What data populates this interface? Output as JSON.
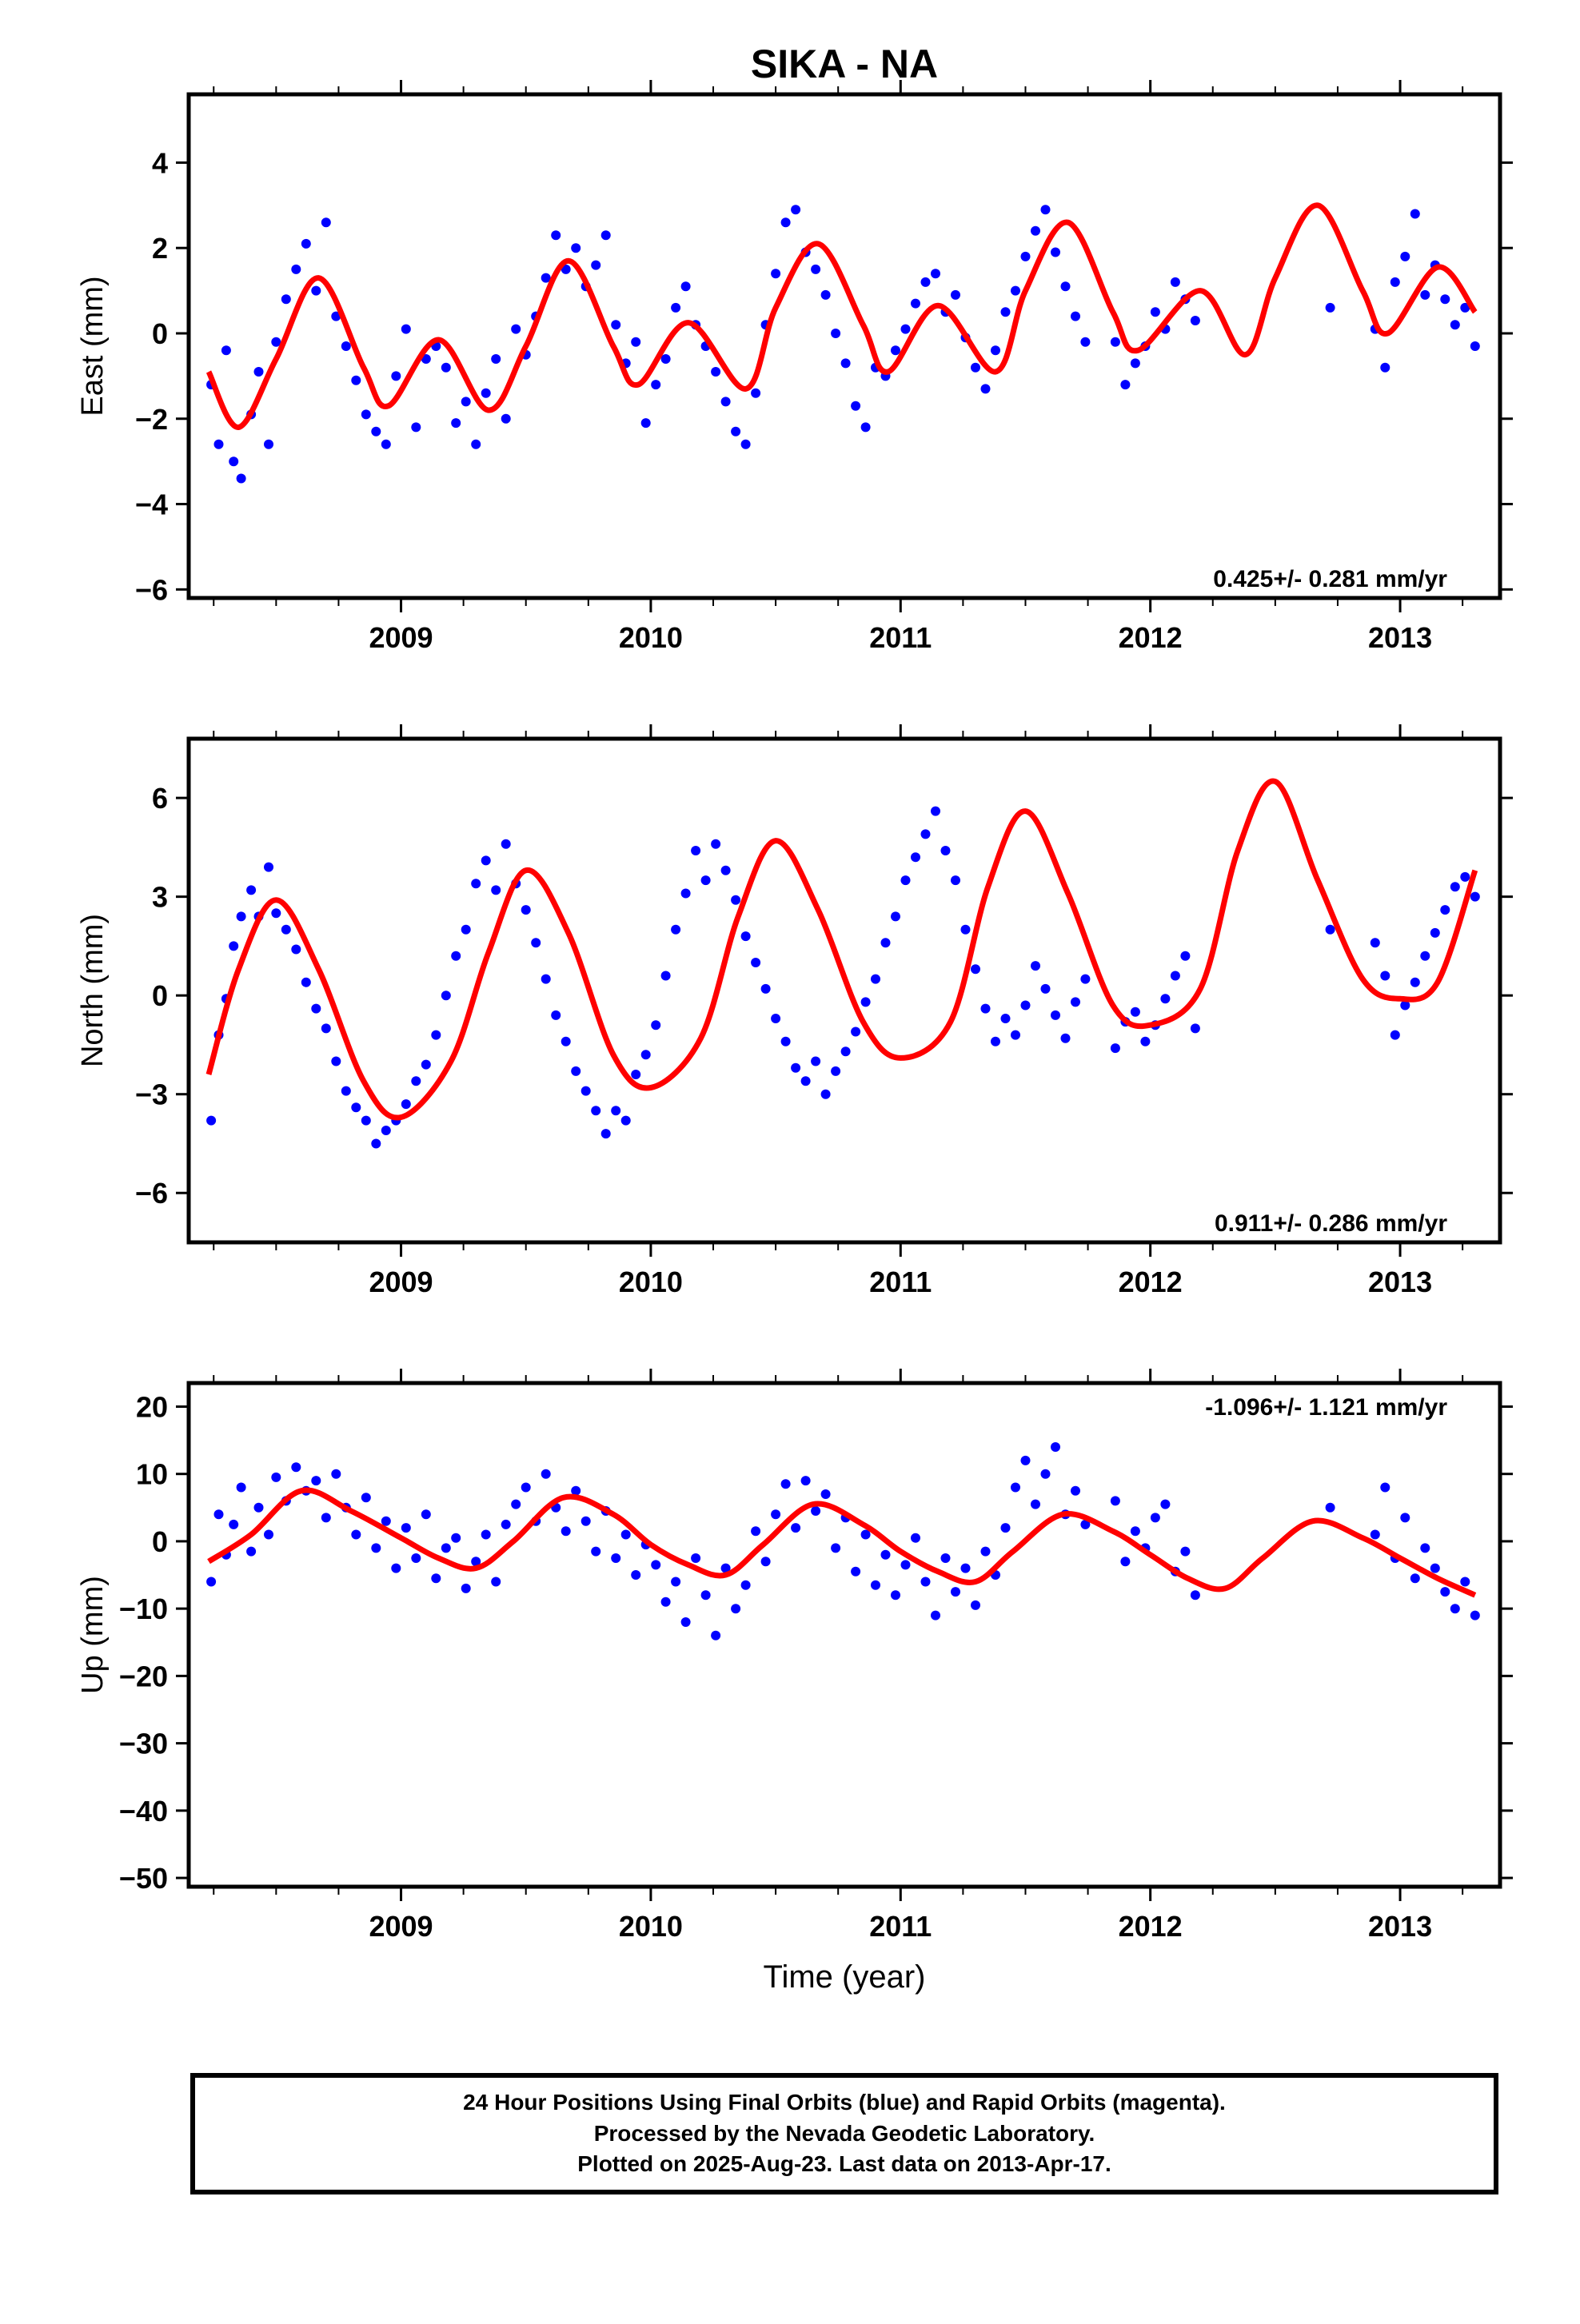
{
  "title": "SIKA - NA",
  "xlabel": "Time (year)",
  "footer": {
    "line1": "24 Hour Positions Using Final Orbits (blue) and Rapid Orbits (magenta).",
    "line2": "Processed by the Nevada Geodetic Laboratory.",
    "line3": "Plotted on 2025-Aug-23. Last data on 2013-Apr-17."
  },
  "colors": {
    "points": "#0000ff",
    "model": "#ff0000",
    "frame": "#000000"
  },
  "chart_data": [
    {
      "type": "scatter",
      "panel": "East",
      "ylabel": "East (mm)",
      "rate_label": "0.425+/- 0.281 mm/yr",
      "rate_position": "bottom-right",
      "xlim": [
        2008.15,
        2013.4
      ],
      "ylim": [
        -6.2,
        5.6
      ],
      "x_ticks": [
        "2009",
        "2010",
        "2011",
        "2012",
        "2013"
      ],
      "y_ticks": [
        -6,
        -4,
        -2,
        0,
        2,
        4
      ],
      "model": {
        "name": "",
        "x": [
          2008.23,
          2008.35,
          2008.5,
          2008.67,
          2008.85,
          2008.95,
          2009.15,
          2009.35,
          2009.5,
          2009.67,
          2009.85,
          2009.95,
          2010.15,
          2010.38,
          2010.5,
          2010.67,
          2010.85,
          2010.95,
          2011.15,
          2011.38,
          2011.5,
          2011.67,
          2011.85,
          2011.95,
          2012.2,
          2012.38,
          2012.5,
          2012.67,
          2012.85,
          2012.95,
          2013.15,
          2013.3
        ],
        "y": [
          -0.9,
          -2.2,
          -0.6,
          1.3,
          -0.8,
          -1.7,
          -0.15,
          -1.8,
          -0.3,
          1.7,
          -0.3,
          -1.2,
          0.25,
          -1.3,
          0.6,
          2.1,
          0.2,
          -0.9,
          0.65,
          -0.9,
          1.0,
          2.6,
          0.5,
          -0.4,
          1.0,
          -0.5,
          1.3,
          3.0,
          1.0,
          0.0,
          1.55,
          0.5
        ]
      },
      "points": {
        "x": [
          2008.24,
          2008.27,
          2008.3,
          2008.33,
          2008.36,
          2008.4,
          2008.43,
          2008.47,
          2008.5,
          2008.54,
          2008.58,
          2008.62,
          2008.66,
          2008.7,
          2008.74,
          2008.78,
          2008.82,
          2008.86,
          2008.9,
          2008.94,
          2008.98,
          2009.02,
          2009.06,
          2009.1,
          2009.14,
          2009.18,
          2009.22,
          2009.26,
          2009.3,
          2009.34,
          2009.38,
          2009.42,
          2009.46,
          2009.5,
          2009.54,
          2009.58,
          2009.62,
          2009.66,
          2009.7,
          2009.74,
          2009.78,
          2009.82,
          2009.86,
          2009.9,
          2009.94,
          2009.98,
          2010.02,
          2010.06,
          2010.1,
          2010.14,
          2010.18,
          2010.22,
          2010.26,
          2010.3,
          2010.34,
          2010.38,
          2010.42,
          2010.46,
          2010.5,
          2010.54,
          2010.58,
          2010.62,
          2010.66,
          2010.7,
          2010.74,
          2010.78,
          2010.82,
          2010.86,
          2010.9,
          2010.94,
          2010.98,
          2011.02,
          2011.06,
          2011.1,
          2011.14,
          2011.18,
          2011.22,
          2011.26,
          2011.3,
          2011.34,
          2011.38,
          2011.42,
          2011.46,
          2011.5,
          2011.54,
          2011.58,
          2011.62,
          2011.66,
          2011.7,
          2011.74,
          2011.86,
          2011.9,
          2011.94,
          2011.98,
          2012.02,
          2012.06,
          2012.1,
          2012.14,
          2012.18,
          2012.72,
          2012.9,
          2012.94,
          2012.98,
          2013.02,
          2013.06,
          2013.1,
          2013.14,
          2013.18,
          2013.22,
          2013.26,
          2013.3
        ],
        "y": [
          -1.2,
          -2.6,
          -0.4,
          -3.0,
          -3.4,
          -1.9,
          -0.9,
          -2.6,
          -0.2,
          0.8,
          1.5,
          2.1,
          1.0,
          2.6,
          0.4,
          -0.3,
          -1.1,
          -1.9,
          -2.3,
          -2.6,
          -1.0,
          0.1,
          -2.2,
          -0.6,
          -0.3,
          -0.8,
          -2.1,
          -1.6,
          -2.6,
          -1.4,
          -0.6,
          -2.0,
          0.1,
          -0.5,
          0.4,
          1.3,
          2.3,
          1.5,
          2.0,
          1.1,
          1.6,
          2.3,
          0.2,
          -0.7,
          -0.2,
          -2.1,
          -1.2,
          -0.6,
          0.6,
          1.1,
          0.2,
          -0.3,
          -0.9,
          -1.6,
          -2.3,
          -2.6,
          -1.4,
          0.2,
          1.4,
          2.6,
          2.9,
          1.9,
          1.5,
          0.9,
          0.0,
          -0.7,
          -1.7,
          -2.2,
          -0.8,
          -1.0,
          -0.4,
          0.1,
          0.7,
          1.2,
          1.4,
          0.5,
          0.9,
          -0.1,
          -0.8,
          -1.3,
          -0.4,
          0.5,
          1.0,
          1.8,
          2.4,
          2.9,
          1.9,
          1.1,
          0.4,
          -0.2,
          -0.2,
          -1.2,
          -0.7,
          -0.3,
          0.5,
          0.1,
          1.2,
          0.8,
          0.3,
          0.6,
          0.1,
          -0.8,
          1.2,
          1.8,
          2.8,
          0.9,
          1.6,
          0.8,
          0.2,
          0.6,
          -0.3
        ]
      }
    },
    {
      "type": "scatter",
      "panel": "North",
      "ylabel": "North (mm)",
      "rate_label": "0.911+/- 0.286 mm/yr",
      "rate_position": "bottom-right",
      "xlim": [
        2008.15,
        2013.4
      ],
      "ylim": [
        -7.5,
        7.8
      ],
      "x_ticks": [
        "2009",
        "2010",
        "2011",
        "2012",
        "2013"
      ],
      "y_ticks": [
        -6,
        -3,
        0,
        3,
        6
      ],
      "model": {
        "name": "",
        "x": [
          2008.23,
          2008.35,
          2008.5,
          2008.67,
          2008.85,
          2009.0,
          2009.2,
          2009.35,
          2009.5,
          2009.67,
          2009.85,
          2010.0,
          2010.2,
          2010.35,
          2010.5,
          2010.67,
          2010.85,
          2011.0,
          2011.2,
          2011.35,
          2011.5,
          2011.67,
          2011.85,
          2012.0,
          2012.2,
          2012.35,
          2012.5,
          2012.67,
          2012.85,
          2013.0,
          2013.15,
          2013.3
        ],
        "y": [
          -2.4,
          0.8,
          2.9,
          0.8,
          -2.6,
          -3.7,
          -2.0,
          1.3,
          3.8,
          1.9,
          -1.8,
          -2.8,
          -1.3,
          2.4,
          4.7,
          2.6,
          -0.8,
          -1.9,
          -0.8,
          3.3,
          5.6,
          3.1,
          -0.3,
          -0.9,
          0.2,
          4.4,
          6.5,
          3.5,
          0.5,
          -0.1,
          0.4,
          3.8
        ]
      },
      "points": {
        "x": [
          2008.24,
          2008.27,
          2008.3,
          2008.33,
          2008.36,
          2008.4,
          2008.43,
          2008.47,
          2008.5,
          2008.54,
          2008.58,
          2008.62,
          2008.66,
          2008.7,
          2008.74,
          2008.78,
          2008.82,
          2008.86,
          2008.9,
          2008.94,
          2008.98,
          2009.02,
          2009.06,
          2009.1,
          2009.14,
          2009.18,
          2009.22,
          2009.26,
          2009.3,
          2009.34,
          2009.38,
          2009.42,
          2009.46,
          2009.5,
          2009.54,
          2009.58,
          2009.62,
          2009.66,
          2009.7,
          2009.74,
          2009.78,
          2009.82,
          2009.86,
          2009.9,
          2009.94,
          2009.98,
          2010.02,
          2010.06,
          2010.1,
          2010.14,
          2010.18,
          2010.22,
          2010.26,
          2010.3,
          2010.34,
          2010.38,
          2010.42,
          2010.46,
          2010.5,
          2010.54,
          2010.58,
          2010.62,
          2010.66,
          2010.7,
          2010.74,
          2010.78,
          2010.82,
          2010.86,
          2010.9,
          2010.94,
          2010.98,
          2011.02,
          2011.06,
          2011.1,
          2011.14,
          2011.18,
          2011.22,
          2011.26,
          2011.3,
          2011.34,
          2011.38,
          2011.42,
          2011.46,
          2011.5,
          2011.54,
          2011.58,
          2011.62,
          2011.66,
          2011.7,
          2011.74,
          2011.86,
          2011.9,
          2011.94,
          2011.98,
          2012.02,
          2012.06,
          2012.1,
          2012.14,
          2012.18,
          2012.72,
          2012.9,
          2012.94,
          2012.98,
          2013.02,
          2013.06,
          2013.1,
          2013.14,
          2013.18,
          2013.22,
          2013.26,
          2013.3
        ],
        "y": [
          -3.8,
          -1.2,
          -0.1,
          1.5,
          2.4,
          3.2,
          2.4,
          3.9,
          2.5,
          2.0,
          1.4,
          0.4,
          -0.4,
          -1.0,
          -2.0,
          -2.9,
          -3.4,
          -3.8,
          -4.5,
          -4.1,
          -3.8,
          -3.3,
          -2.6,
          -2.1,
          -1.2,
          0.0,
          1.2,
          2.0,
          3.4,
          4.1,
          3.2,
          4.6,
          3.4,
          2.6,
          1.6,
          0.5,
          -0.6,
          -1.4,
          -2.3,
          -2.9,
          -3.5,
          -4.2,
          -3.5,
          -3.8,
          -2.4,
          -1.8,
          -0.9,
          0.6,
          2.0,
          3.1,
          4.4,
          3.5,
          4.6,
          3.8,
          2.9,
          1.8,
          1.0,
          0.2,
          -0.7,
          -1.4,
          -2.2,
          -2.6,
          -2.0,
          -3.0,
          -2.3,
          -1.7,
          -1.1,
          -0.2,
          0.5,
          1.6,
          2.4,
          3.5,
          4.2,
          4.9,
          5.6,
          4.4,
          3.5,
          2.0,
          0.8,
          -0.4,
          -1.4,
          -0.7,
          -1.2,
          -0.3,
          0.9,
          0.2,
          -0.6,
          -1.3,
          -0.2,
          0.5,
          -1.6,
          -0.8,
          -0.5,
          -1.4,
          -0.9,
          -0.1,
          0.6,
          1.2,
          -1.0,
          2.0,
          1.6,
          0.6,
          -1.2,
          -0.3,
          0.4,
          1.2,
          1.9,
          2.6,
          3.3,
          3.6,
          3.0
        ]
      }
    },
    {
      "type": "scatter",
      "panel": "Up",
      "ylabel": "Up (mm)",
      "rate_label": "-1.096+/- 1.121 mm/yr",
      "rate_position": "top-right",
      "xlim": [
        2008.15,
        2013.4
      ],
      "ylim": [
        -51.3,
        23.5
      ],
      "x_ticks": [
        "2009",
        "2010",
        "2011",
        "2012",
        "2013"
      ],
      "y_ticks": [
        -50,
        -40,
        -30,
        -20,
        -10,
        0,
        10,
        20
      ],
      "model": {
        "name": "",
        "x": [
          2008.23,
          2008.4,
          2008.6,
          2008.8,
          2009.0,
          2009.15,
          2009.3,
          2009.45,
          2009.65,
          2009.85,
          2010.0,
          2010.15,
          2010.3,
          2010.45,
          2010.65,
          2010.85,
          2011.0,
          2011.15,
          2011.3,
          2011.45,
          2011.65,
          2011.85,
          2012.0,
          2012.15,
          2012.3,
          2012.45,
          2012.65,
          2012.85,
          2013.0,
          2013.15,
          2013.3
        ],
        "y": [
          -3.0,
          1.0,
          7.5,
          4.5,
          0.5,
          -2.5,
          -4.0,
          0.0,
          6.5,
          4.0,
          -0.5,
          -3.5,
          -5.0,
          -0.5,
          5.5,
          2.5,
          -1.5,
          -4.5,
          -6.0,
          -1.5,
          4.0,
          1.5,
          -2.0,
          -5.5,
          -7.0,
          -2.5,
          3.0,
          0.5,
          -2.5,
          -5.5,
          -8.0
        ]
      },
      "points": {
        "x": [
          2008.24,
          2008.27,
          2008.3,
          2008.33,
          2008.36,
          2008.4,
          2008.43,
          2008.47,
          2008.5,
          2008.54,
          2008.58,
          2008.62,
          2008.66,
          2008.7,
          2008.74,
          2008.78,
          2008.82,
          2008.86,
          2008.9,
          2008.94,
          2008.98,
          2009.02,
          2009.06,
          2009.1,
          2009.14,
          2009.18,
          2009.22,
          2009.26,
          2009.3,
          2009.34,
          2009.38,
          2009.42,
          2009.46,
          2009.5,
          2009.54,
          2009.58,
          2009.62,
          2009.66,
          2009.7,
          2009.74,
          2009.78,
          2009.82,
          2009.86,
          2009.9,
          2009.94,
          2009.98,
          2010.02,
          2010.06,
          2010.1,
          2010.14,
          2010.18,
          2010.22,
          2010.26,
          2010.3,
          2010.34,
          2010.38,
          2010.42,
          2010.46,
          2010.5,
          2010.54,
          2010.58,
          2010.62,
          2010.66,
          2010.7,
          2010.74,
          2010.78,
          2010.82,
          2010.86,
          2010.9,
          2010.94,
          2010.98,
          2011.02,
          2011.06,
          2011.1,
          2011.14,
          2011.18,
          2011.22,
          2011.26,
          2011.3,
          2011.34,
          2011.38,
          2011.42,
          2011.46,
          2011.5,
          2011.54,
          2011.58,
          2011.62,
          2011.66,
          2011.7,
          2011.74,
          2011.86,
          2011.9,
          2011.94,
          2011.98,
          2012.02,
          2012.06,
          2012.1,
          2012.14,
          2012.18,
          2012.72,
          2012.9,
          2012.94,
          2012.98,
          2013.02,
          2013.06,
          2013.1,
          2013.14,
          2013.18,
          2013.22,
          2013.26,
          2013.3
        ],
        "y": [
          -6.0,
          4.0,
          -2.0,
          2.5,
          8.0,
          -1.5,
          5.0,
          1.0,
          9.5,
          6.0,
          11.0,
          7.5,
          9.0,
          3.5,
          10.0,
          5.0,
          1.0,
          6.5,
          -1.0,
          3.0,
          -4.0,
          2.0,
          -2.5,
          4.0,
          -5.5,
          -1.0,
          0.5,
          -7.0,
          -3.0,
          1.0,
          -6.0,
          2.5,
          5.5,
          8.0,
          3.0,
          10.0,
          5.0,
          1.5,
          7.5,
          3.0,
          -1.5,
          4.5,
          -2.5,
          1.0,
          -5.0,
          -0.5,
          -3.5,
          -9.0,
          -6.0,
          -12.0,
          -2.5,
          -8.0,
          -14.0,
          -4.0,
          -10.0,
          -6.5,
          1.5,
          -3.0,
          4.0,
          8.5,
          2.0,
          9.0,
          4.5,
          7.0,
          -1.0,
          3.5,
          -4.5,
          1.0,
          -6.5,
          -2.0,
          -8.0,
          -3.5,
          0.5,
          -6.0,
          -11.0,
          -2.5,
          -7.5,
          -4.0,
          -9.5,
          -1.5,
          -5.0,
          2.0,
          8.0,
          12.0,
          5.5,
          10.0,
          14.0,
          4.0,
          7.5,
          2.5,
          6.0,
          -3.0,
          1.5,
          -1.0,
          3.5,
          5.5,
          -4.5,
          -1.5,
          -8.0,
          5.0,
          1.0,
          8.0,
          -2.5,
          3.5,
          -5.5,
          -1.0,
          -4.0,
          -7.5,
          -10.0,
          -6.0,
          -11.0
        ]
      }
    }
  ]
}
